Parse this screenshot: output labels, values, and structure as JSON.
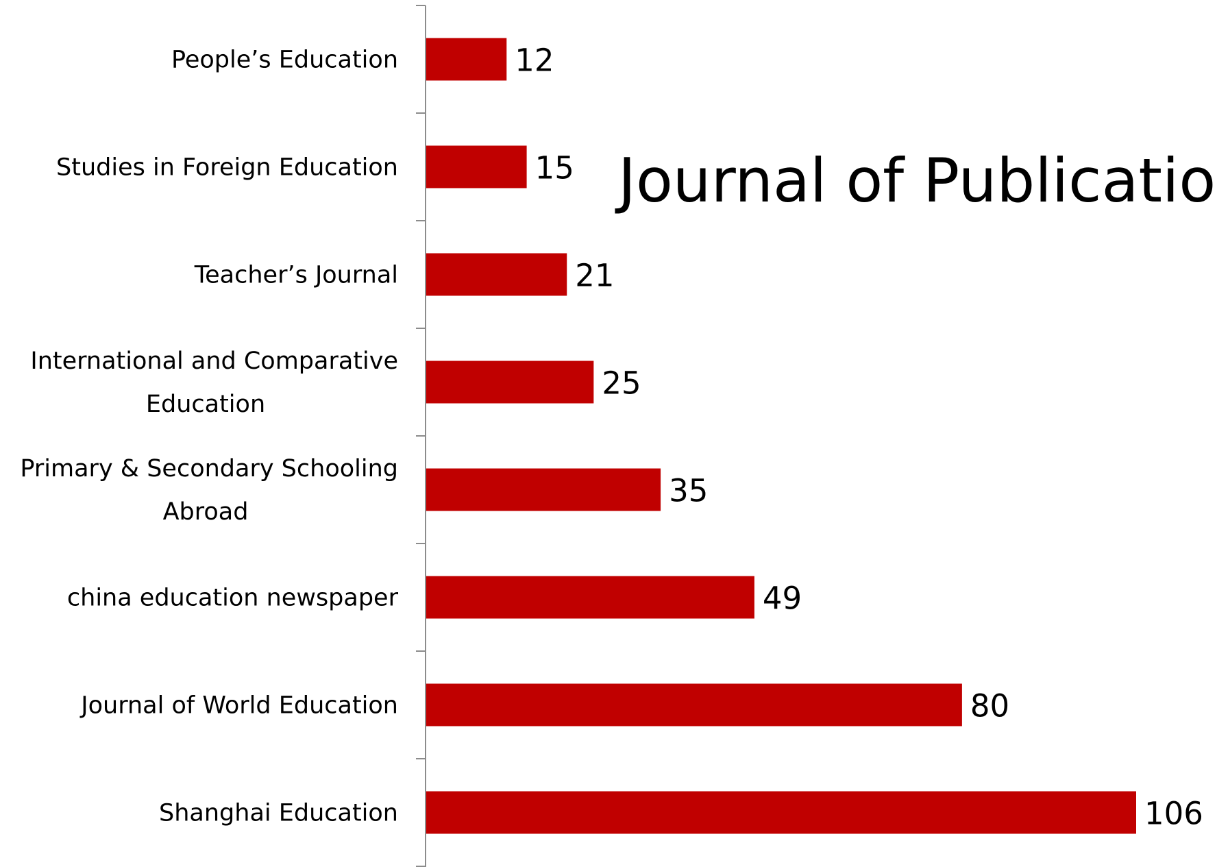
{
  "chart_data": {
    "type": "bar",
    "orientation": "horizontal",
    "title": "Journal of Publicatio",
    "xlabel": "",
    "ylabel": "",
    "categories": [
      "People’s Education",
      "Studies in Foreign Education",
      "Teacher’s Journal",
      "International and Comparative Education",
      "Primary & Secondary Schooling Abroad",
      "china education newspaper",
      "Journal of World Education",
      "Shanghai Education"
    ],
    "category_lines": [
      [
        "People’s Education"
      ],
      [
        "Studies in Foreign Education"
      ],
      [
        "Teacher’s Journal"
      ],
      [
        "International and Comparative",
        "Education"
      ],
      [
        "Primary & Secondary Schooling",
        "Abroad"
      ],
      [
        "china education newspaper"
      ],
      [
        "Journal of World Education"
      ],
      [
        "Shanghai Education"
      ]
    ],
    "series": [
      {
        "values": [
          12,
          15,
          21,
          25,
          35,
          49,
          80,
          106
        ],
        "color": "#c00000"
      }
    ],
    "data_labels": [
      "12",
      "15",
      "21",
      "25",
      "35",
      "49",
      "80",
      "106"
    ],
    "xlim": [
      0,
      106
    ],
    "grid": false,
    "legend": "none"
  }
}
